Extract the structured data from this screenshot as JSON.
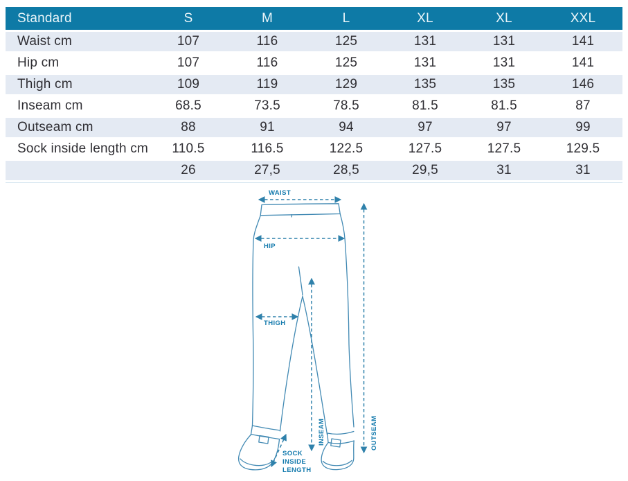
{
  "table": {
    "header": [
      "Standard",
      "S",
      "M",
      "L",
      "XL",
      "XL",
      "XXL"
    ],
    "rows": [
      {
        "label": "Waist cm",
        "values": [
          "107",
          "116",
          "125",
          "131",
          "131",
          "141"
        ]
      },
      {
        "label": "Hip cm",
        "values": [
          "107",
          "116",
          "125",
          "131",
          "131",
          "141"
        ]
      },
      {
        "label": "Thigh cm",
        "values": [
          "109",
          "119",
          "129",
          "135",
          "135",
          "146"
        ]
      },
      {
        "label": "Inseam cm",
        "values": [
          "68.5",
          "73.5",
          "78.5",
          "81.5",
          "81.5",
          "87"
        ]
      },
      {
        "label": "Outseam cm",
        "values": [
          "88",
          "91",
          "94",
          "97",
          "97",
          "99"
        ]
      },
      {
        "label": "Sock inside length cm",
        "values": [
          "110.5",
          "116.5",
          "122.5",
          "127.5",
          "127.5",
          "129.5"
        ]
      },
      {
        "label": "",
        "values": [
          "26",
          "27,5",
          "28,5",
          "29,5",
          "31",
          "31"
        ]
      }
    ],
    "colors": {
      "header_bg": "#0e7aa6",
      "header_text": "#eaf5f9",
      "row_alt_bg": "#e4eaf3",
      "row_bg": "#ffffff",
      "cell_text": "#2f2e33"
    }
  },
  "diagram": {
    "labels": {
      "waist": "WAIST",
      "hip": "HIP",
      "thigh": "THIGH",
      "inseam": "INSEAM",
      "outseam": "OUTSEAM",
      "sock_line1": "SOCK",
      "sock_line2": "INSIDE",
      "sock_line3": "LENGTH"
    },
    "colors": {
      "line": "#4189b3",
      "arrow": "#2f81ab",
      "label": "#137aad"
    }
  }
}
